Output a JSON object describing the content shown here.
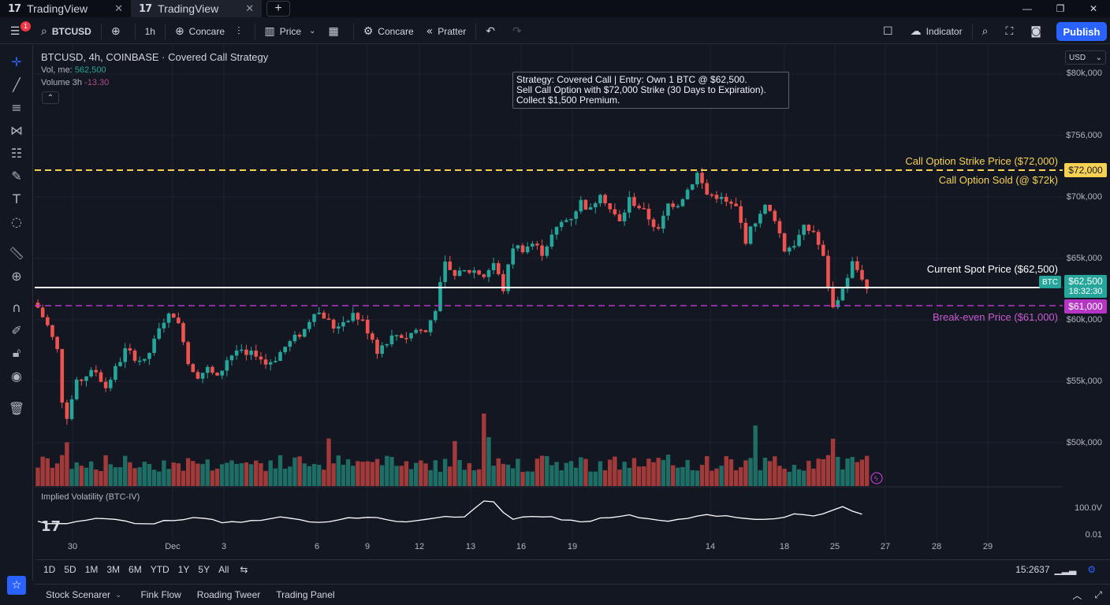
{
  "tabs": [
    {
      "label": "TradingView",
      "active": false
    },
    {
      "label": "TradingView",
      "active": true
    }
  ],
  "toolbar": {
    "notification_count": "1",
    "symbol": "BTCUSD",
    "interval": "1h",
    "compare_label": "Concare",
    "chart_type_label": "Price",
    "compare2_label": "Concare",
    "pattern_label": "Pratter",
    "indicator_label": "Indicator",
    "publish_label": "Publish"
  },
  "legend": {
    "title": "BTCUSD, 4h, COINBASE · Covered Call Strategy",
    "vol_label": "Vol, me:",
    "vol_value": "562,500",
    "volume_label": "Volume 3h",
    "volume_value": "-13.30"
  },
  "annotation": {
    "line1": "Strategy: Covered Call | Entry: Own 1 BTC @ $62,500.",
    "line2": "Sell Call Option with $72,000 Strike (30 Days to Expiration).",
    "line3": "Collect $1,500 Premium."
  },
  "lines": {
    "strike_label": "Call Option Strike Price ($72,000)",
    "sold_label": "Call Option Sold (@ $72k)",
    "spot_label": "Current Spot Price ($62,500)",
    "breakeven_label": "Break-even Price ($61,000)",
    "strike_color": "#f7d154",
    "spot_color": "#ffffff",
    "breakeven_color": "#b536c4"
  },
  "price_scale": {
    "currency": "USD",
    "ticks": [
      "$80k,000",
      "$756,000",
      "$70k,000",
      "$65k,000",
      "$60k,000",
      "$55k,000",
      "$50k,000"
    ],
    "strike_badge": "$72,000",
    "spot_badge": "$62,500",
    "spot_timer": "18:32:30",
    "breakeven_badge": "$61,000",
    "btc_tag": "BTC",
    "iv_tick": "100.0V",
    "iv_tick2": "0.01"
  },
  "iv_panel": {
    "label": "Implied Volatility (BTC-IV)"
  },
  "time_axis": [
    "30",
    "Dec",
    "3",
    "6",
    "9",
    "12",
    "13",
    "16",
    "19",
    "14",
    "18",
    "25",
    "27",
    "28",
    "29"
  ],
  "range_bar": {
    "ranges": [
      "1D",
      "5D",
      "1M",
      "3M",
      "6M",
      "YTD",
      "1Y",
      "5Y",
      "All"
    ],
    "clock": "15:2637"
  },
  "bottom_bar": {
    "tabs": [
      "Stock Scenarer",
      "Fink Flow",
      "Roading Tweer",
      "Trading Panel"
    ]
  },
  "chart_data": {
    "type": "candlestick",
    "title": "BTCUSD, 4h, COINBASE · Covered Call Strategy",
    "y_axis_unit": "USD",
    "ylim": [
      47000,
      82500
    ],
    "reference_lines": [
      {
        "name": "Call Option Strike Price ($72,000)",
        "value": 72000
      },
      {
        "name": "Current Spot Price ($62,500)",
        "value": 62500
      },
      {
        "name": "Break-even Price ($61,000)",
        "value": 61000
      }
    ],
    "x_ticks": [
      "30",
      "Dec",
      "3",
      "6",
      "9",
      "12",
      "13",
      "16",
      "19",
      "14",
      "18",
      "25",
      "27",
      "28",
      "29"
    ],
    "close_path": [
      [
        0,
        61000
      ],
      [
        2,
        59500
      ],
      [
        4,
        57500
      ],
      [
        5,
        53500
      ],
      [
        6,
        52200
      ],
      [
        8,
        54800
      ],
      [
        10,
        55500
      ],
      [
        12,
        55800
      ],
      [
        14,
        54500
      ],
      [
        16,
        56000
      ],
      [
        18,
        57500
      ],
      [
        20,
        57000
      ],
      [
        22,
        56500
      ],
      [
        24,
        58200
      ],
      [
        26,
        60000
      ],
      [
        28,
        60500
      ],
      [
        30,
        58500
      ],
      [
        31,
        56500
      ],
      [
        33,
        55500
      ],
      [
        35,
        56000
      ],
      [
        37,
        55200
      ],
      [
        39,
        56800
      ],
      [
        41,
        57500
      ],
      [
        43,
        57000
      ],
      [
        45,
        57300
      ],
      [
        47,
        56400
      ],
      [
        49,
        56900
      ],
      [
        51,
        57800
      ],
      [
        53,
        58500
      ],
      [
        55,
        59200
      ],
      [
        57,
        60800
      ],
      [
        59,
        60300
      ],
      [
        61,
        59400
      ],
      [
        63,
        59900
      ],
      [
        65,
        60500
      ],
      [
        67,
        59800
      ],
      [
        69,
        58500
      ],
      [
        70,
        57500
      ],
      [
        72,
        58300
      ],
      [
        74,
        58800
      ],
      [
        76,
        58600
      ],
      [
        78,
        59200
      ],
      [
        80,
        59000
      ],
      [
        82,
        61000
      ],
      [
        84,
        64500
      ],
      [
        86,
        63500
      ],
      [
        88,
        63900
      ],
      [
        90,
        64000
      ],
      [
        92,
        63600
      ],
      [
        94,
        64600
      ],
      [
        96,
        62500
      ],
      [
        98,
        66000
      ],
      [
        100,
        65800
      ],
      [
        102,
        66200
      ],
      [
        104,
        65500
      ],
      [
        106,
        66800
      ],
      [
        108,
        67900
      ],
      [
        110,
        68400
      ],
      [
        112,
        69600
      ],
      [
        114,
        68900
      ],
      [
        116,
        70500
      ],
      [
        118,
        69000
      ],
      [
        120,
        67900
      ],
      [
        122,
        69800
      ],
      [
        124,
        69200
      ],
      [
        126,
        68300
      ],
      [
        128,
        67200
      ],
      [
        130,
        69400
      ],
      [
        132,
        69500
      ],
      [
        134,
        70600
      ],
      [
        136,
        71900
      ],
      [
        138,
        70200
      ],
      [
        140,
        70100
      ],
      [
        142,
        69500
      ],
      [
        144,
        69100
      ],
      [
        146,
        66500
      ],
      [
        148,
        68100
      ],
      [
        150,
        69200
      ],
      [
        152,
        68300
      ],
      [
        154,
        65700
      ],
      [
        156,
        66200
      ],
      [
        158,
        67400
      ],
      [
        160,
        67200
      ],
      [
        162,
        65000
      ],
      [
        163,
        62800
      ],
      [
        164,
        60900
      ],
      [
        166,
        62500
      ],
      [
        168,
        64600
      ],
      [
        170,
        63500
      ],
      [
        171,
        62500
      ]
    ],
    "volume_profile": "bars 0-171, spikes near index 6, 60, 86, 148, 164",
    "iv_series_label": "Implied Volatility (BTC-IV)"
  }
}
